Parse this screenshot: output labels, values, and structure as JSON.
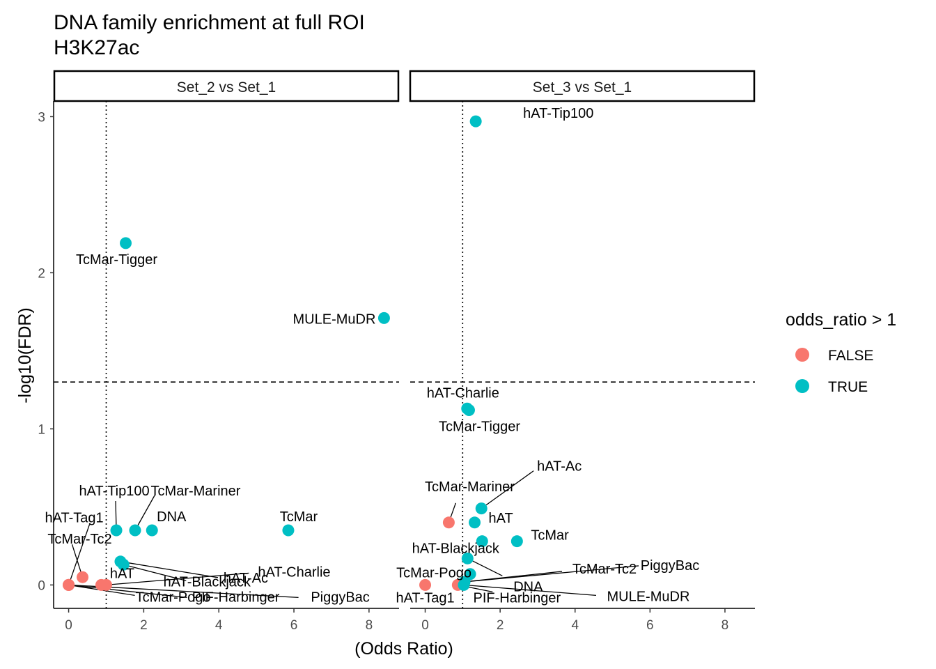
{
  "title_line1": "DNA family enrichment at full ROI",
  "title_line2": "H3K27ac",
  "colors": {
    "false": "#F8766D",
    "true": "#00BFC4"
  },
  "chart_data": {
    "type": "scatter",
    "xlabel": "(Odds Ratio)",
    "ylabel": "-log10(FDR)",
    "xlim": [
      -0.4,
      8.8
    ],
    "ylim": [
      -0.15,
      3.1
    ],
    "x_ticks": [
      0,
      2,
      4,
      6,
      8
    ],
    "y_ticks": [
      0,
      1,
      2,
      3
    ],
    "ref_vline_x": 1,
    "ref_hline_y": 1.3,
    "legend": {
      "title": "odds_ratio > 1",
      "entries": [
        {
          "key": "false",
          "label": "FALSE"
        },
        {
          "key": "true",
          "label": "TRUE"
        }
      ]
    },
    "panels": [
      {
        "strip": "Set_2 vs Set_1",
        "points": [
          {
            "label": "TcMar-Tigger",
            "x": 1.52,
            "y": 2.19,
            "sig": true
          },
          {
            "label": "MULE-MuDR",
            "x": 8.4,
            "y": 1.71,
            "sig": true
          },
          {
            "label": "TcMar",
            "x": 5.85,
            "y": 0.35,
            "sig": true
          },
          {
            "label": "DNA",
            "x": 2.22,
            "y": 0.35,
            "sig": true
          },
          {
            "label": "TcMar-Mariner",
            "x": 1.77,
            "y": 0.35,
            "sig": true
          },
          {
            "label": "hAT-Tip100",
            "x": 1.27,
            "y": 0.35,
            "sig": true
          },
          {
            "label": "hAT-Blackjack",
            "x": 1.46,
            "y": 0.13,
            "sig": true
          },
          {
            "label": "hAT-Ac",
            "x": 1.38,
            "y": 0.15,
            "sig": true
          },
          {
            "label": "hAT-Tag1",
            "x": 0.0,
            "y": 0.0,
            "sig": false
          },
          {
            "label": "TcMar-Tc2",
            "x": 0.37,
            "y": 0.05,
            "sig": false
          },
          {
            "label": "hAT",
            "x": 0.87,
            "y": 0.0,
            "sig": false
          },
          {
            "label": "hAT-Charlie",
            "x": 1.0,
            "y": 0.0,
            "sig": false
          },
          {
            "label": "TcMar-Pogo",
            "x": 0.0,
            "y": 0.0,
            "sig": false
          },
          {
            "label": "PIF-Harbinger",
            "x": 0.0,
            "y": 0.0,
            "sig": false
          },
          {
            "label": "PiggyBac",
            "x": 0.0,
            "y": 0.0,
            "sig": false
          }
        ]
      },
      {
        "strip": "Set_3 vs Set_1",
        "points": [
          {
            "label": "hAT-Tip100",
            "x": 1.35,
            "y": 2.97,
            "sig": true
          },
          {
            "label": "hAT-Charlie",
            "x": 1.12,
            "y": 1.13,
            "sig": true
          },
          {
            "label": "TcMar-Tigger",
            "x": 1.17,
            "y": 1.12,
            "sig": true
          },
          {
            "label": "hAT-Ac",
            "x": 1.5,
            "y": 0.49,
            "sig": true
          },
          {
            "label": "TcMar-Mariner",
            "x": 0.63,
            "y": 0.4,
            "sig": false
          },
          {
            "label": "hAT",
            "x": 1.32,
            "y": 0.4,
            "sig": true
          },
          {
            "label": "TcMar",
            "x": 2.45,
            "y": 0.28,
            "sig": true
          },
          {
            "label": "hAT-Blackjack",
            "x": 1.52,
            "y": 0.28,
            "sig": true
          },
          {
            "label": "DNA",
            "x": 1.13,
            "y": 0.17,
            "sig": true
          },
          {
            "label": "TcMar-Pogo",
            "x": 1.2,
            "y": 0.07,
            "sig": true
          },
          {
            "label": "TcMar-Tc2",
            "x": 1.05,
            "y": 0.02,
            "sig": true
          },
          {
            "label": "PiggyBac",
            "x": 1.05,
            "y": 0.02,
            "sig": true
          },
          {
            "label": "hAT-Tag1",
            "x": 0.0,
            "y": 0.0,
            "sig": false
          },
          {
            "label": "PIF-Harbinger",
            "x": 0.87,
            "y": 0.0,
            "sig": false
          },
          {
            "label": "MULE-MuDR",
            "x": 1.03,
            "y": 0.0,
            "sig": true
          }
        ]
      }
    ]
  }
}
